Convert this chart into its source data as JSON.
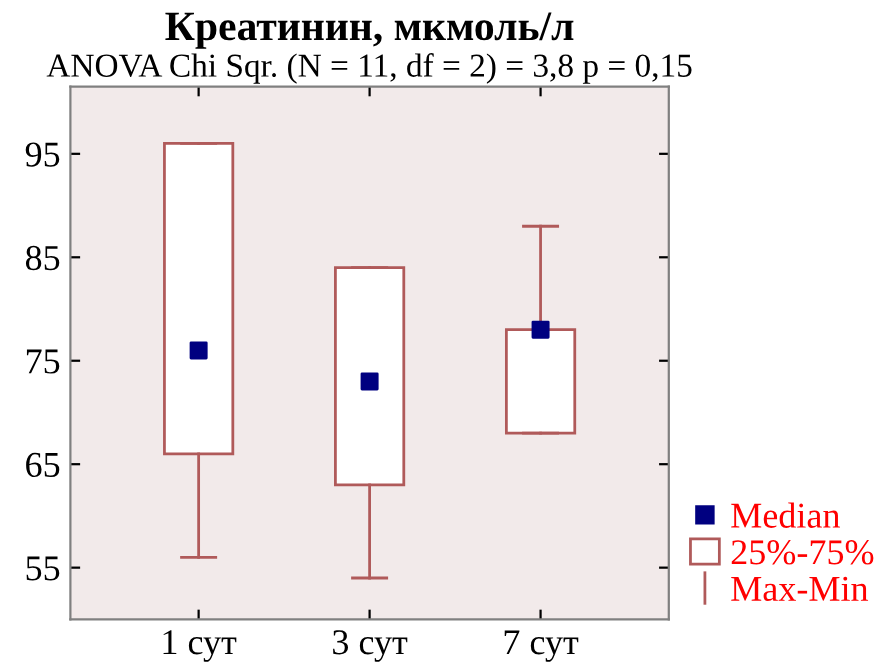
{
  "chart_data": {
    "type": "box",
    "title": "Креатинин, мкмоль/л",
    "subtitle": "ANOVA Chi Sqr. (N = 11, df = 2) = 3,8 p = 0,15",
    "categories": [
      "1 сут",
      "3 сут",
      "7 сут"
    ],
    "series": [
      {
        "name": "25%-75%",
        "color": "#b05a5a",
        "boxes": [
          {
            "low": 56,
            "q1": 66,
            "q3": 96,
            "high": 96
          },
          {
            "low": 54,
            "q1": 63,
            "q3": 84,
            "high": 84
          },
          {
            "low": 68,
            "q1": 68,
            "q3": 78,
            "high": 88
          }
        ]
      },
      {
        "name": "Median",
        "type": "scatter",
        "color": "#000080",
        "marker": "square",
        "x": [
          "1 сут",
          "3 сут",
          "7 сут"
        ],
        "values": [
          76,
          73,
          78
        ]
      }
    ],
    "annotations": [
      "Max-Min"
    ],
    "ylim": [
      50,
      101.5
    ],
    "yticks": [
      55,
      65,
      75,
      85,
      95
    ],
    "grid": false,
    "legend": "bottom right"
  }
}
